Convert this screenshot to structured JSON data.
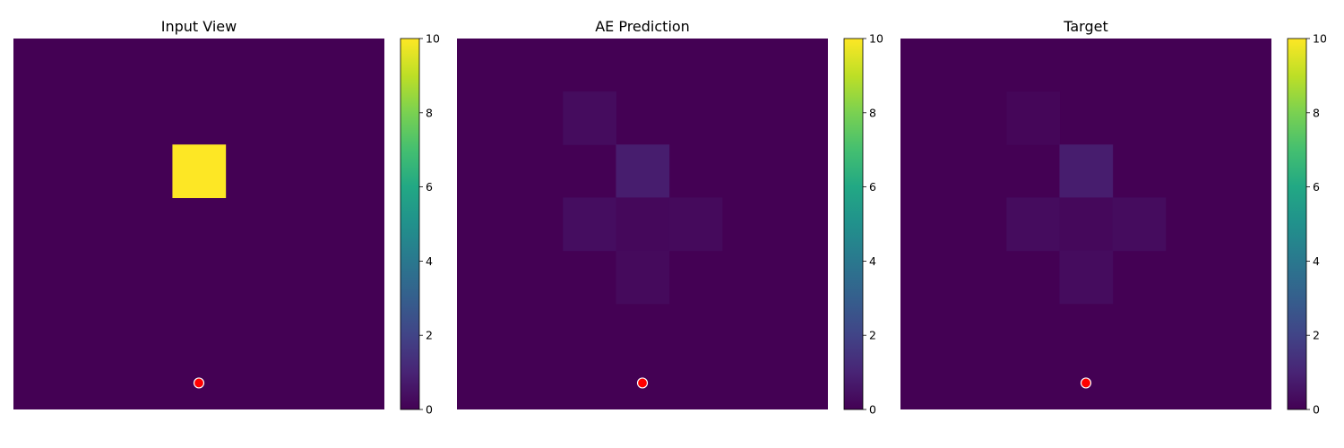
{
  "figure": {
    "colormap": "viridis",
    "background": "#ffffff"
  },
  "chart_data": [
    {
      "type": "heatmap",
      "title": "Input View",
      "grid_size": [
        7,
        7
      ],
      "cells": [
        {
          "row": 2,
          "col": 3,
          "value": 10.0
        }
      ],
      "marker": {
        "row": 6.5,
        "col": 3.5,
        "color": "#ff0000",
        "edge": "#ffffff"
      },
      "colorbar": {
        "min": 0,
        "max": 10,
        "ticks": [
          "0",
          "2",
          "4",
          "6",
          "8",
          "10"
        ]
      },
      "grid": false
    },
    {
      "type": "heatmap",
      "title": "AE Prediction",
      "grid_size": [
        7,
        7
      ],
      "cells": [
        {
          "row": 1,
          "col": 2,
          "value": 0.3
        },
        {
          "row": 2,
          "col": 3,
          "value": 0.8
        },
        {
          "row": 3,
          "col": 2,
          "value": 0.35
        },
        {
          "row": 3,
          "col": 3,
          "value": 0.2
        },
        {
          "row": 3,
          "col": 4,
          "value": 0.25
        },
        {
          "row": 4,
          "col": 3,
          "value": 0.25
        }
      ],
      "marker": {
        "row": 6.5,
        "col": 3.5,
        "color": "#ff0000",
        "edge": "#ffffff"
      },
      "colorbar": {
        "min": 0,
        "max": 10,
        "ticks": [
          "0",
          "2",
          "4",
          "6",
          "8",
          "10"
        ]
      },
      "grid": false
    },
    {
      "type": "heatmap",
      "title": "Target",
      "grid_size": [
        7,
        7
      ],
      "cells": [
        {
          "row": 1,
          "col": 2,
          "value": 0.15
        },
        {
          "row": 2,
          "col": 3,
          "value": 0.8
        },
        {
          "row": 3,
          "col": 2,
          "value": 0.3
        },
        {
          "row": 3,
          "col": 3,
          "value": 0.2
        },
        {
          "row": 3,
          "col": 4,
          "value": 0.3
        },
        {
          "row": 4,
          "col": 3,
          "value": 0.3
        }
      ],
      "marker": {
        "row": 6.5,
        "col": 3.5,
        "color": "#ff0000",
        "edge": "#ffffff"
      },
      "colorbar": {
        "min": 0,
        "max": 10,
        "ticks": [
          "0",
          "2",
          "4",
          "6",
          "8",
          "10"
        ]
      },
      "grid": false
    }
  ]
}
